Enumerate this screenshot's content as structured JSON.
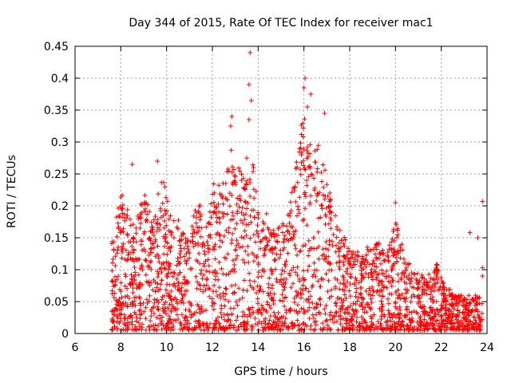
{
  "chart_data": {
    "type": "scatter",
    "title": "Day 344 of 2015, Rate Of TEC Index for receiver mac1",
    "xlabel": "GPS time / hours",
    "ylabel": "ROTI / TECUs",
    "xlim": [
      6,
      24
    ],
    "ylim": [
      0,
      0.45
    ],
    "xticks": [
      "6",
      "8",
      "10",
      "12",
      "14",
      "16",
      "18",
      "20",
      "22",
      "24"
    ],
    "yticks": [
      "0",
      "0.05",
      "0.1",
      "0.15",
      "0.2",
      "0.25",
      "0.3",
      "0.35",
      "0.4",
      "0.45"
    ],
    "grid": true,
    "marker": "+",
    "series_color": "#ff0000",
    "envelope": {
      "x": [
        7.6,
        7.8,
        8.0,
        8.2,
        8.4,
        8.6,
        8.8,
        9.0,
        9.2,
        9.4,
        9.6,
        9.8,
        10.0,
        10.2,
        10.4,
        10.6,
        10.8,
        11.0,
        11.2,
        11.4,
        11.6,
        11.8,
        12.0,
        12.2,
        12.4,
        12.6,
        12.8,
        13.0,
        13.2,
        13.4,
        13.6,
        13.8,
        14.0,
        14.2,
        14.4,
        14.6,
        14.8,
        15.0,
        15.2,
        15.4,
        15.6,
        15.8,
        16.0,
        16.2,
        16.4,
        16.6,
        16.8,
        17.0,
        17.2,
        17.4,
        17.6,
        17.8,
        18.0,
        18.2,
        18.4,
        18.6,
        18.8,
        19.0,
        19.2,
        19.4,
        19.6,
        19.8,
        20.0,
        20.2,
        20.4,
        20.6,
        20.8,
        21.0,
        21.2,
        21.4,
        21.6,
        21.8,
        22.0,
        22.2,
        22.4,
        22.6,
        22.8,
        23.0,
        23.2,
        23.4,
        23.6,
        23.8
      ],
      "upper": [
        0.14,
        0.2,
        0.22,
        0.21,
        0.19,
        0.17,
        0.2,
        0.23,
        0.2,
        0.17,
        0.22,
        0.25,
        0.22,
        0.19,
        0.2,
        0.17,
        0.15,
        0.16,
        0.19,
        0.21,
        0.18,
        0.17,
        0.24,
        0.24,
        0.23,
        0.25,
        0.3,
        0.27,
        0.26,
        0.24,
        0.33,
        0.26,
        0.2,
        0.18,
        0.19,
        0.17,
        0.16,
        0.18,
        0.19,
        0.21,
        0.25,
        0.31,
        0.35,
        0.33,
        0.29,
        0.3,
        0.28,
        0.25,
        0.22,
        0.2,
        0.16,
        0.15,
        0.14,
        0.14,
        0.13,
        0.12,
        0.14,
        0.13,
        0.15,
        0.13,
        0.14,
        0.15,
        0.18,
        0.15,
        0.13,
        0.11,
        0.1,
        0.1,
        0.09,
        0.09,
        0.1,
        0.11,
        0.09,
        0.07,
        0.07,
        0.06,
        0.06,
        0.06,
        0.06,
        0.06,
        0.06,
        0.05
      ]
    },
    "outliers": [
      {
        "x": 13.65,
        "y": 0.44
      },
      {
        "x": 13.6,
        "y": 0.39
      },
      {
        "x": 13.7,
        "y": 0.365
      },
      {
        "x": 13.6,
        "y": 0.335
      },
      {
        "x": 16.05,
        "y": 0.4
      },
      {
        "x": 16.0,
        "y": 0.385
      },
      {
        "x": 16.3,
        "y": 0.375
      },
      {
        "x": 16.15,
        "y": 0.355
      },
      {
        "x": 12.85,
        "y": 0.34
      },
      {
        "x": 12.8,
        "y": 0.325
      },
      {
        "x": 16.9,
        "y": 0.345
      },
      {
        "x": 9.6,
        "y": 0.27
      },
      {
        "x": 8.5,
        "y": 0.265
      },
      {
        "x": 23.8,
        "y": 0.207
      },
      {
        "x": 20.0,
        "y": 0.205
      },
      {
        "x": 23.25,
        "y": 0.158
      },
      {
        "x": 23.6,
        "y": 0.15
      },
      {
        "x": 23.8,
        "y": 0.103
      },
      {
        "x": 23.8,
        "y": 0.09
      }
    ]
  }
}
